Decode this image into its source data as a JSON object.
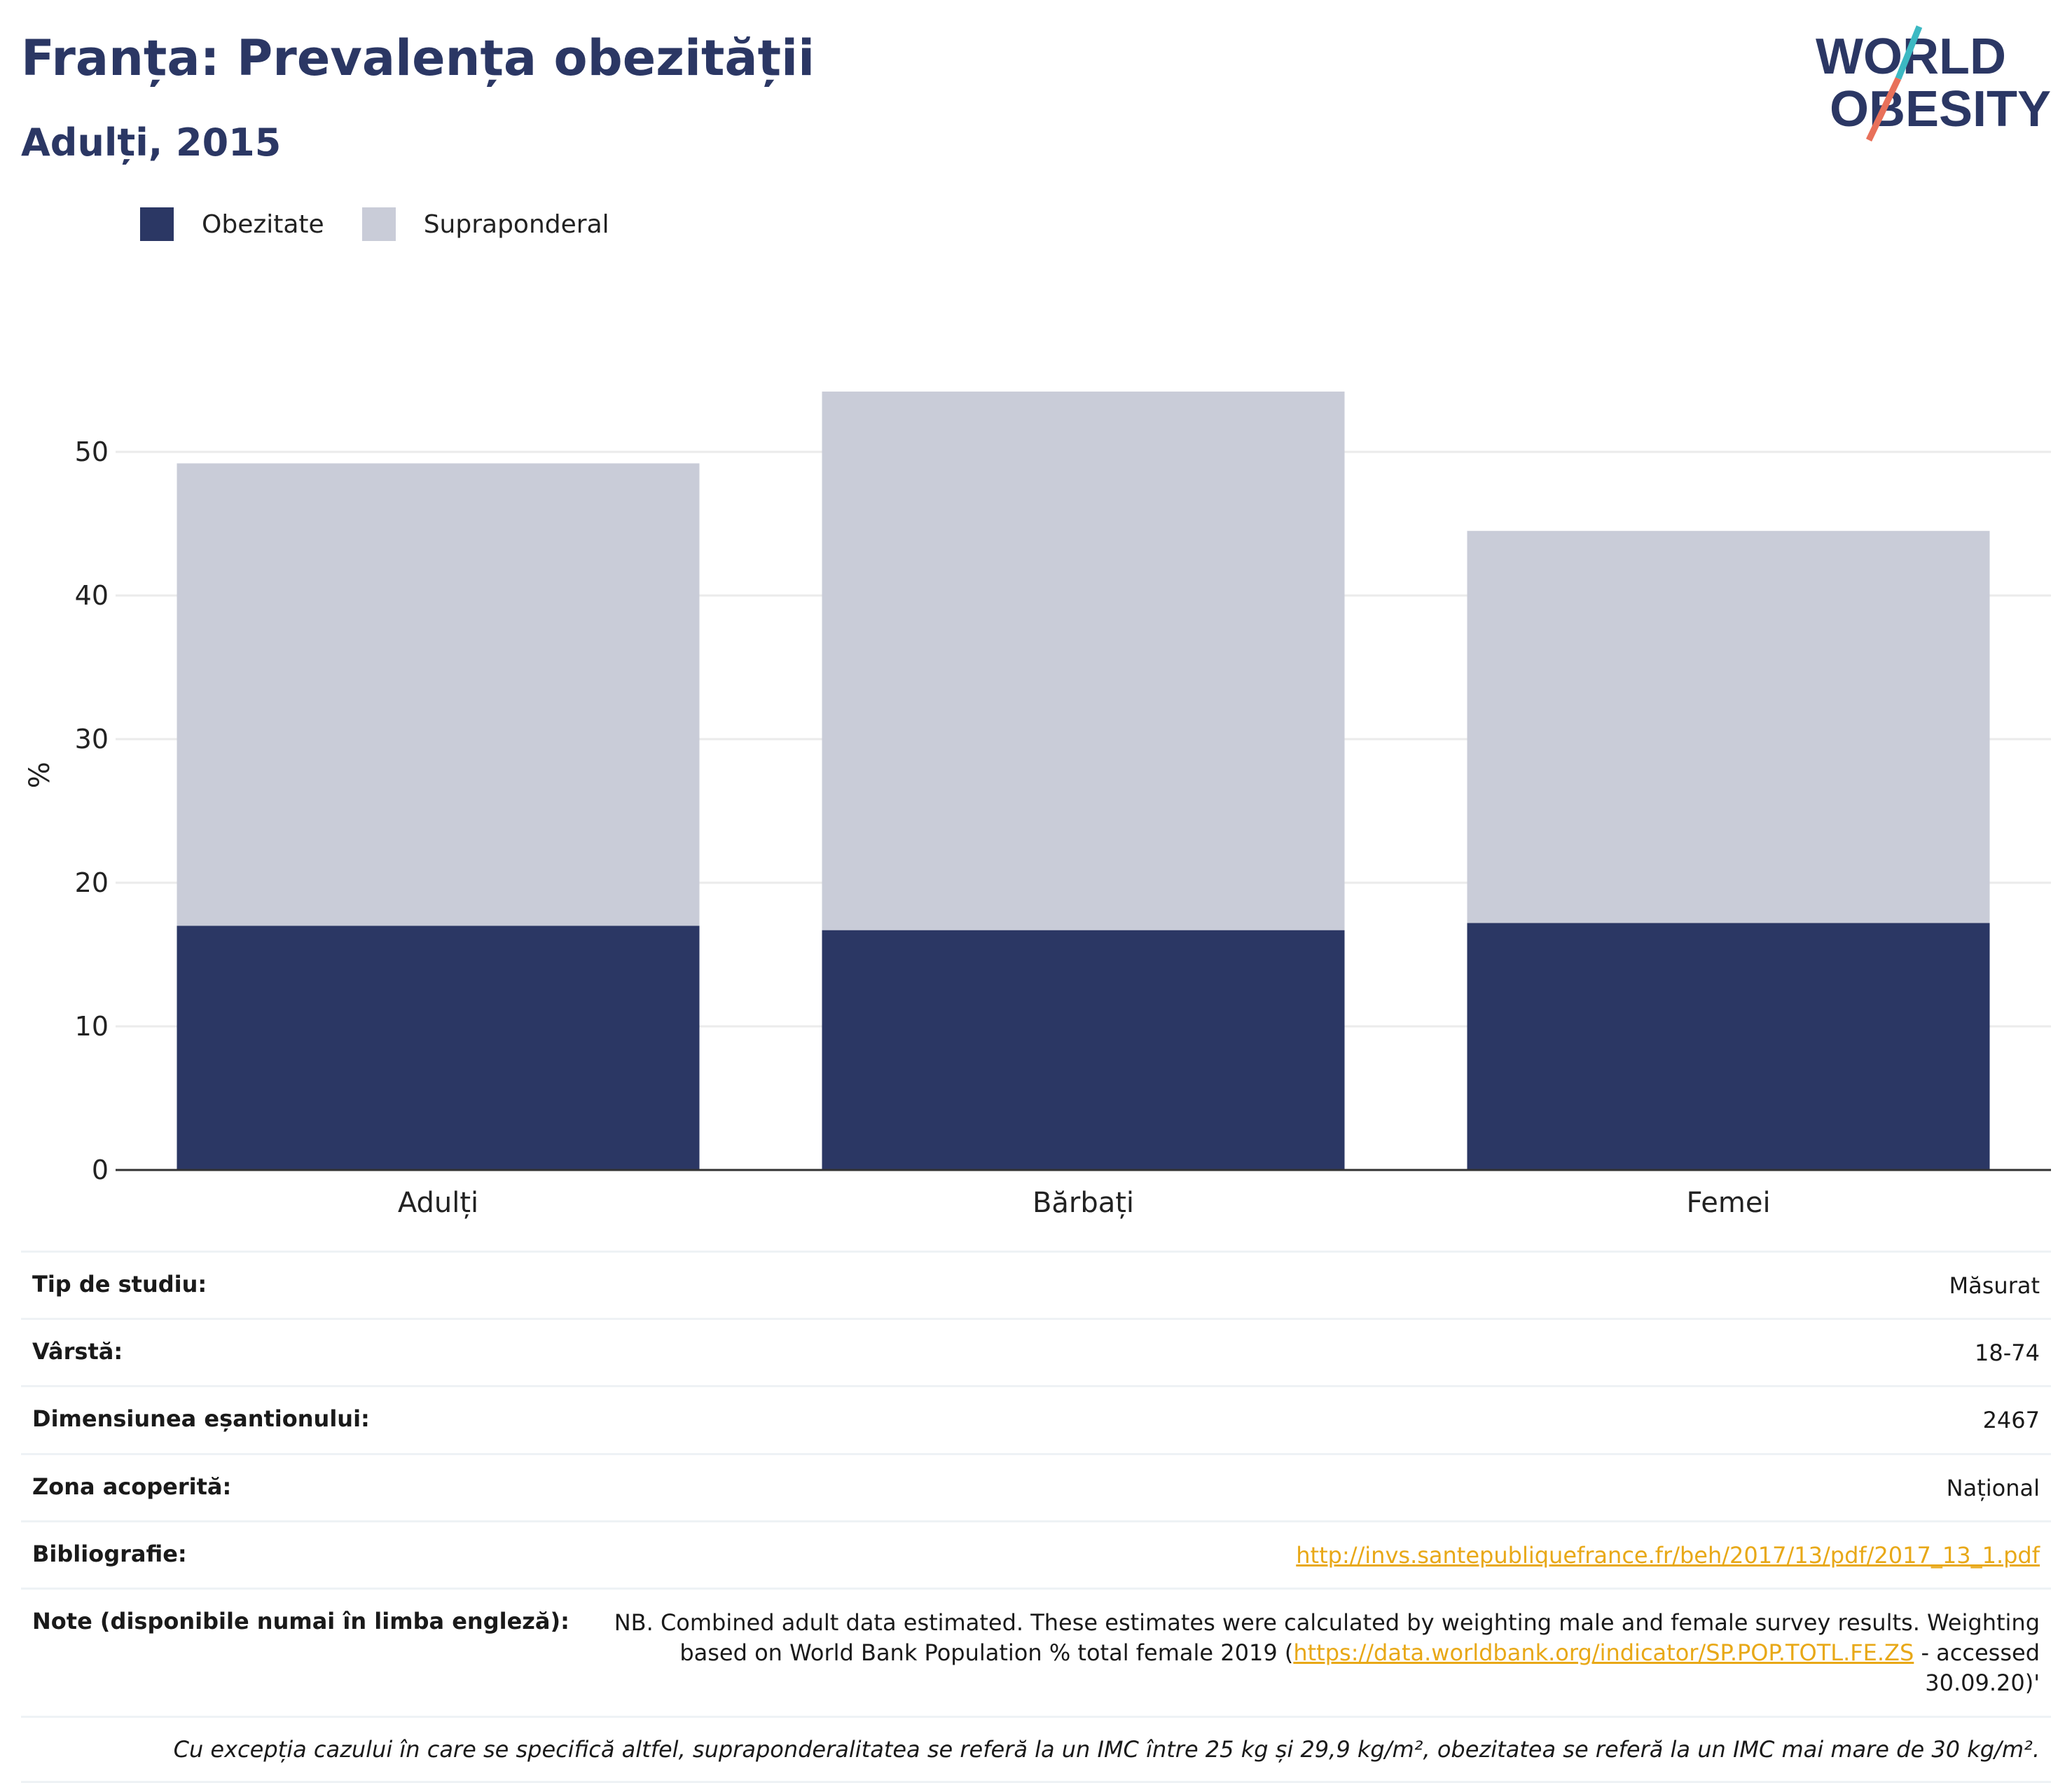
{
  "header": {
    "title": "Franța: Prevalența obezității",
    "subtitle": "Adulți, 2015"
  },
  "logo": {
    "line1": "WORLD",
    "line2": "OBESITY"
  },
  "colors": {
    "obesity": "#2b3764",
    "overweight": "#c9ccd8",
    "accent": "#e8a817",
    "title": "#2b3764"
  },
  "chart_data": {
    "type": "bar",
    "stacked": true,
    "categories": [
      "Adulți",
      "Bărbați",
      "Femei"
    ],
    "series": [
      {
        "name": "Obezitate",
        "values": [
          17.0,
          16.7,
          17.2
        ]
      },
      {
        "name": "Supraponderal",
        "values": [
          32.2,
          37.5,
          27.3
        ]
      }
    ],
    "ylabel": "%",
    "ylim": [
      0,
      55
    ],
    "yticks": [
      0,
      10,
      20,
      30,
      40,
      50
    ],
    "grid": true,
    "legend_position": "top-left"
  },
  "meta": {
    "rows": [
      {
        "label": "Tip de studiu:",
        "value": "Măsurat"
      },
      {
        "label": "Vârstă:",
        "value": "18-74"
      },
      {
        "label": "Dimensiunea eșantionului:",
        "value": "2467"
      },
      {
        "label": "Zona acoperită:",
        "value": "Național"
      },
      {
        "label": "Bibliografie:",
        "value": "http://invs.santepubliquefrance.fr/beh/2017/13/pdf/2017_13_1.pdf"
      }
    ],
    "note_label": "Note (disponibile numai în limba engleză):",
    "note_text_1": "NB. Combined adult data estimated. These estimates were calculated by weighting male and female survey results. Weighting based on World Bank Population % total female 2019 (",
    "note_link": "https://data.worldbank.org/indicator/SP.POP.TOTL.FE.ZS",
    "note_text_2": " - accessed 30.09.20)'",
    "footnote": "Cu excepția cazului în care se specifică altfel, supraponderalitatea se referă la un IMC între 25 kg și 29,9 kg/m², obezitatea se referă la un IMC mai mare de 30 kg/m²."
  }
}
